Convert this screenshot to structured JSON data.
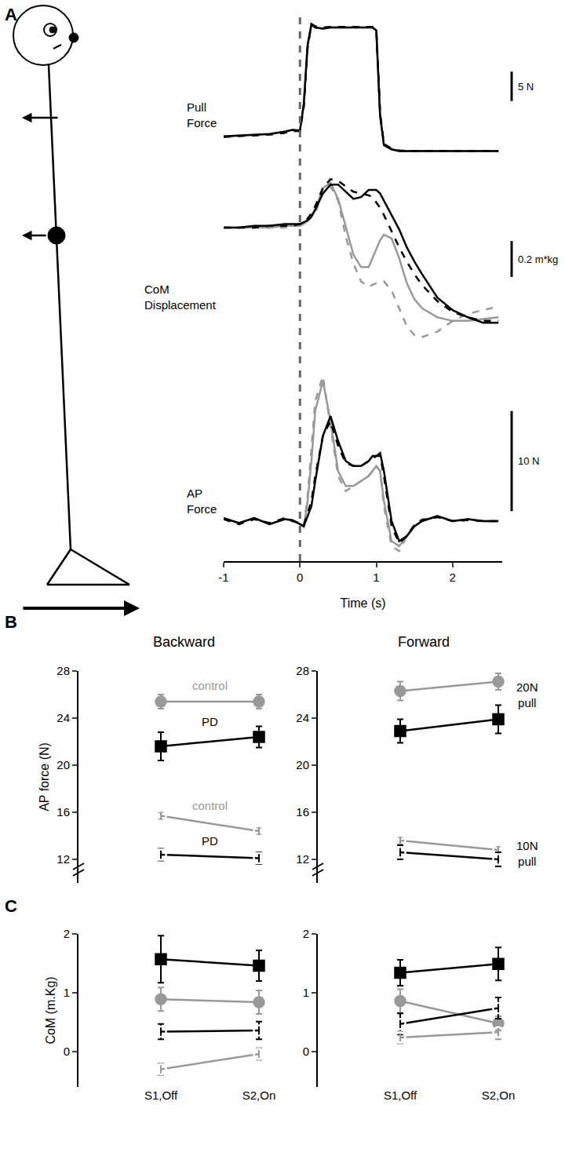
{
  "chart_data": [
    {
      "panel": "A",
      "type": "line",
      "xlabel": "Time (s)",
      "tick_labels": "x",
      "x": [
        -1,
        -0.8,
        -0.6,
        -0.4,
        -0.2,
        -0.1,
        0,
        0.05,
        0.1,
        0.15,
        0.2,
        0.3,
        0.4,
        0.5,
        0.6,
        0.7,
        0.8,
        0.9,
        0.95,
        1,
        1.05,
        1.1,
        1.2,
        1.3,
        1.4,
        1.5,
        1.6,
        1.8,
        2,
        2.2,
        2.4,
        2.6
      ],
      "xlim": [
        -1,
        2.65
      ],
      "xticks": [
        -1,
        0,
        1,
        2
      ],
      "event_time": 0,
      "panels": [
        {
          "label": "Pull\nForce",
          "ylim": [
            -1,
            23
          ],
          "scale_bar": {
            "value": 5,
            "label": "5 N"
          },
          "series": [
            {
              "color": "#999999",
              "line_style": "solid",
              "values": [
                2.5,
                2.6,
                2.7,
                2.9,
                3.3,
                3.6,
                3.5,
                8,
                18,
                21.5,
                21,
                20.8,
                21,
                21,
                21,
                21,
                21,
                21,
                21,
                20.5,
                6,
                1,
                0.3,
                0,
                0,
                0,
                0,
                0,
                0,
                0,
                0,
                0
              ]
            },
            {
              "color": "#999999",
              "line_style": "dash",
              "values": [
                2.4,
                2.5,
                2.6,
                2.8,
                3.1,
                3.4,
                3.4,
                7.5,
                17.5,
                21.6,
                21.2,
                21,
                21.1,
                21.1,
                21.1,
                21.1,
                21.1,
                21.1,
                21.1,
                20.8,
                6.5,
                1.2,
                0.4,
                0.1,
                0,
                0,
                0,
                0,
                0,
                0,
                0,
                0
              ]
            },
            {
              "color": "#000000",
              "line_style": "solid",
              "values": [
                2.5,
                2.6,
                2.7,
                2.9,
                3.3,
                3.6,
                3.5,
                8,
                18,
                21.5,
                21,
                20.8,
                21,
                21,
                21,
                21,
                21,
                21,
                21,
                20.5,
                6,
                1,
                0.3,
                0,
                0,
                0,
                0,
                0,
                0,
                0,
                0,
                0
              ]
            },
            {
              "color": "#000000",
              "line_style": "dash",
              "values": [
                2.4,
                2.5,
                2.6,
                2.8,
                3.1,
                3.4,
                3.4,
                7.5,
                17.5,
                21.6,
                21.2,
                21,
                21.1,
                21.1,
                21.1,
                21.1,
                21.1,
                21.1,
                21.1,
                20.8,
                6.5,
                1.2,
                0.4,
                0.1,
                0,
                0,
                0,
                0,
                0,
                0,
                0,
                0
              ]
            }
          ]
        },
        {
          "label": "CoM\nDisplacement",
          "ylim": [
            -0.7,
            0.35
          ],
          "scale_bar": {
            "value": 0.2,
            "label": "0.2 m*kg"
          },
          "series": [
            {
              "color": "#999999",
              "line_style": "solid",
              "values": [
                0,
                0,
                0,
                0,
                0.01,
                0.01,
                0.01,
                0.02,
                0.04,
                0.07,
                0.1,
                0.22,
                0.25,
                0.16,
                0,
                -0.15,
                -0.22,
                -0.22,
                -0.17,
                -0.12,
                -0.07,
                -0.04,
                -0.06,
                -0.17,
                -0.31,
                -0.4,
                -0.45,
                -0.5,
                -0.52,
                -0.52,
                -0.51,
                -0.5
              ]
            },
            {
              "color": "#999999",
              "line_style": "dash",
              "values": [
                0,
                0,
                0,
                0,
                0,
                0.01,
                0.01,
                0.02,
                0.04,
                0.06,
                0.08,
                0.2,
                0.23,
                0.15,
                -0.05,
                -0.2,
                -0.3,
                -0.33,
                -0.32,
                -0.31,
                -0.3,
                -0.3,
                -0.35,
                -0.45,
                -0.55,
                -0.6,
                -0.61,
                -0.58,
                -0.52,
                -0.48,
                -0.46,
                -0.44
              ]
            },
            {
              "color": "#000000",
              "line_style": "solid",
              "values": [
                0,
                0,
                0.01,
                0.01,
                0.02,
                0.02,
                0.02,
                0.03,
                0.04,
                0.06,
                0.1,
                0.19,
                0.24,
                0.24,
                0.2,
                0.16,
                0.17,
                0.21,
                0.21,
                0.21,
                0.19,
                0.15,
                0.07,
                -0.01,
                -0.11,
                -0.19,
                -0.26,
                -0.39,
                -0.46,
                -0.5,
                -0.53,
                -0.53
              ]
            },
            {
              "color": "#000000",
              "line_style": "dash",
              "values": [
                0,
                0,
                0,
                0.01,
                0.01,
                0.01,
                0.02,
                0.03,
                0.05,
                0.08,
                0.12,
                0.22,
                0.27,
                0.26,
                0.23,
                0.2,
                0.19,
                0.18,
                0.17,
                0.14,
                0.11,
                0.07,
                -0.02,
                -0.11,
                -0.19,
                -0.26,
                -0.32,
                -0.41,
                -0.47,
                -0.5,
                -0.52,
                -0.52
              ]
            }
          ]
        },
        {
          "label": "AP\nForce",
          "ylim": [
            -4,
            16
          ],
          "scale_bar": {
            "value": 10,
            "label": "10 N"
          },
          "series": [
            {
              "color": "#999999",
              "line_style": "solid",
              "values": [
                0.3,
                -0.2,
                0.3,
                -0.3,
                0.2,
                0.1,
                -0.3,
                -0.6,
                2,
                6,
                11,
                14,
                10,
                5,
                3.5,
                3.5,
                4,
                4.5,
                5,
                5.5,
                5,
                2,
                -2,
                -2.5,
                -1.5,
                -0.5,
                0,
                0.5,
                0,
                0.2,
                0,
                0
              ]
            },
            {
              "color": "#999999",
              "line_style": "dash",
              "values": [
                0.2,
                -0.3,
                0.2,
                -0.2,
                0.3,
                0,
                -0.2,
                -0.5,
                2.5,
                7,
                12,
                14.5,
                9.5,
                4.5,
                3,
                3.5,
                4,
                4.5,
                5,
                5.5,
                5,
                1.5,
                -2.5,
                -3,
                -1.5,
                -0.3,
                0.2,
                0.4,
                0,
                0.1,
                0,
                0
              ]
            },
            {
              "color": "#000000",
              "line_style": "solid",
              "values": [
                0.3,
                -0.2,
                0.3,
                -0.3,
                0.2,
                0.1,
                -0.3,
                -0.5,
                0.5,
                1.5,
                4,
                8.5,
                10.5,
                8,
                6,
                5.5,
                5.5,
                6,
                6.5,
                6.5,
                6.8,
                5,
                0,
                -2,
                -1.5,
                -0.5,
                0,
                0.5,
                0,
                0.2,
                0,
                0
              ]
            },
            {
              "color": "#000000",
              "line_style": "dash",
              "values": [
                0.2,
                -0.3,
                0.2,
                -0.2,
                0.3,
                0,
                -0.2,
                -0.4,
                0.8,
                2,
                4.5,
                8.5,
                10,
                7.5,
                5.8,
                5.5,
                5.5,
                6,
                6.3,
                6.5,
                6.5,
                4.5,
                -0.5,
                -2.2,
                -1.5,
                -0.4,
                0.1,
                0.4,
                0,
                0.1,
                0,
                0
              ]
            }
          ]
        }
      ]
    },
    {
      "panel": "B",
      "type": "line",
      "title": "Backward",
      "ylabel": "AP force (N)",
      "tick_labels": "y",
      "categories": [
        null,
        null
      ],
      "ylim": [
        10,
        28
      ],
      "yticks": [
        12,
        16,
        20,
        24,
        28
      ],
      "series": [
        {
          "color": "#999999",
          "marker": "circle",
          "line_style": "solid",
          "values": [
            25.4,
            25.4
          ],
          "errors": [
            0.6,
            0.6
          ]
        },
        {
          "color": "#000000",
          "marker": "square",
          "line_style": "solid",
          "values": [
            21.6,
            22.4
          ],
          "errors": [
            1.2,
            0.9
          ]
        },
        {
          "color": "#999999",
          "marker": "circle-open",
          "line_style": "solid",
          "values": [
            15.7,
            14.4
          ],
          "errors": [
            0.3,
            0.3
          ]
        },
        {
          "color": "#000000",
          "marker": "square-open",
          "line_style": "solid",
          "values": [
            12.4,
            12.1
          ],
          "errors": [
            0.5,
            0.5
          ]
        }
      ],
      "annotations": [
        {
          "text": "control",
          "x": 0.5,
          "y": 26.8,
          "color": "#999999"
        },
        {
          "text": "PD",
          "x": 0.5,
          "y": 23.7,
          "color": "#000000"
        },
        {
          "text": "control",
          "x": 0.5,
          "y": 16.6,
          "color": "#999999"
        },
        {
          "text": "PD",
          "x": 0.5,
          "y": 13.6,
          "color": "#000000"
        }
      ]
    },
    {
      "type": "line",
      "title": "Forward",
      "tick_labels": "y",
      "categories": [
        null,
        null
      ],
      "ylim": [
        10,
        28
      ],
      "yticks": [
        12,
        16,
        20,
        24,
        28
      ],
      "series": [
        {
          "color": "#999999",
          "marker": "circle",
          "line_style": "solid",
          "values": [
            26.3,
            27.1
          ],
          "errors": [
            0.8,
            0.7
          ]
        },
        {
          "color": "#000000",
          "marker": "square",
          "line_style": "solid",
          "values": [
            22.9,
            23.9
          ],
          "errors": [
            1.0,
            1.2
          ]
        },
        {
          "color": "#999999",
          "marker": "circle-open",
          "line_style": "solid",
          "values": [
            13.6,
            12.8
          ],
          "errors": [
            0.3,
            0.3
          ]
        },
        {
          "color": "#000000",
          "marker": "square-open",
          "line_style": "solid",
          "values": [
            12.6,
            12.0
          ],
          "errors": [
            0.6,
            0.6
          ]
        }
      ],
      "annotations": [
        {
          "text": "20N\npull",
          "x": 1.17,
          "y": 26.0,
          "color": "#000000"
        },
        {
          "text": "10N\npull",
          "x": 1.17,
          "y": 12.5,
          "color": "#000000"
        }
      ]
    },
    {
      "panel": "C",
      "type": "line",
      "ylabel": "CoM (m.Kg)",
      "categories": [
        "S1,Off",
        "S2,On"
      ],
      "ylim": [
        -0.6,
        2
      ],
      "yticks": [
        0,
        1,
        2
      ],
      "series": [
        {
          "color": "#000000",
          "marker": "square",
          "line_style": "solid",
          "values": [
            1.57,
            1.46
          ],
          "errors": [
            0.4,
            0.26
          ]
        },
        {
          "color": "#999999",
          "marker": "circle",
          "line_style": "solid",
          "values": [
            0.89,
            0.84
          ],
          "errors": [
            0.2,
            0.2
          ]
        },
        {
          "color": "#000000",
          "marker": "square-open",
          "line_style": "solid",
          "values": [
            0.34,
            0.36
          ],
          "errors": [
            0.13,
            0.15
          ]
        },
        {
          "color": "#999999",
          "marker": "circle-open",
          "line_style": "solid",
          "values": [
            -0.3,
            -0.04
          ],
          "errors": [
            0.1,
            0.1
          ]
        }
      ]
    },
    {
      "type": "line",
      "categories": [
        "S1,Off",
        "S2,On"
      ],
      "ylim": [
        -0.6,
        2
      ],
      "yticks": [
        0,
        1,
        2
      ],
      "series": [
        {
          "color": "#000000",
          "marker": "square",
          "line_style": "solid",
          "values": [
            1.34,
            1.49
          ],
          "errors": [
            0.22,
            0.28
          ]
        },
        {
          "color": "#999999",
          "marker": "circle",
          "line_style": "solid",
          "values": [
            0.86,
            0.48
          ],
          "errors": [
            0.2,
            0.12
          ]
        },
        {
          "color": "#000000",
          "marker": "square-open",
          "line_style": "solid",
          "values": [
            0.47,
            0.74
          ],
          "errors": [
            0.18,
            0.18
          ]
        },
        {
          "color": "#999999",
          "marker": "circle-open",
          "line_style": "solid",
          "values": [
            0.24,
            0.33
          ],
          "errors": [
            0.1,
            0.12
          ]
        }
      ]
    }
  ]
}
